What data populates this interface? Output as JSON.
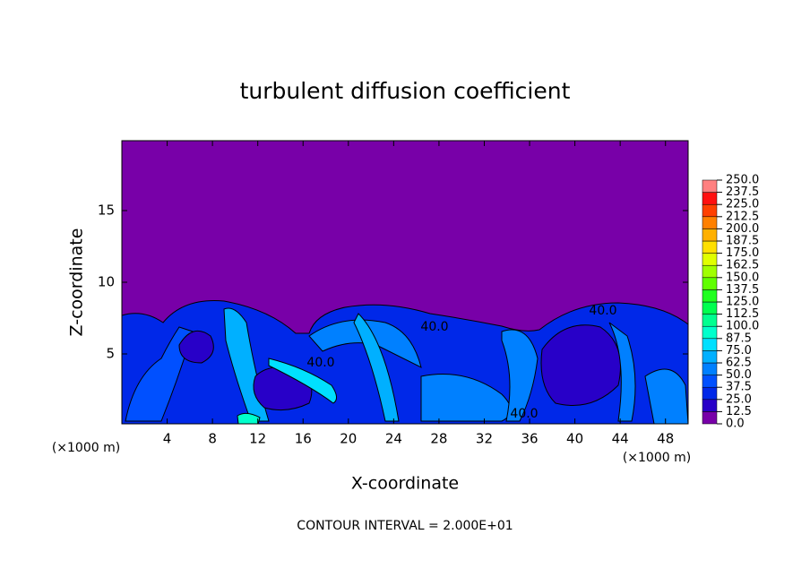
{
  "chart_data": {
    "type": "contour",
    "title": "turbulent diffusion coefficient",
    "xlabel": "X-coordinate",
    "ylabel": "Z-coordinate",
    "x_unit_labels": [
      "(×1000 m)",
      "(×1000 m)"
    ],
    "footnote": "CONTOUR INTERVAL = 2.000E+01",
    "contour_labels": [
      "40.0",
      "40.0",
      "40.0",
      "40.0"
    ],
    "xlim": [
      0,
      50
    ],
    "ylim": [
      0,
      20
    ],
    "xticks": [
      4,
      8,
      12,
      16,
      20,
      24,
      28,
      32,
      36,
      40,
      44,
      48
    ],
    "yticks": [
      5,
      10,
      15
    ],
    "colorbar": {
      "ticks": [
        {
          "value": 0,
          "label": "0.0"
        },
        {
          "value": 12.5,
          "label": "12.5"
        },
        {
          "value": 25,
          "label": "25.0"
        },
        {
          "value": 37.5,
          "label": "37.5"
        },
        {
          "value": 50,
          "label": "50.0"
        },
        {
          "value": 62.5,
          "label": "62.5"
        },
        {
          "value": 75,
          "label": "75.0"
        },
        {
          "value": 87.5,
          "label": "87.5"
        },
        {
          "value": 100,
          "label": "100.0"
        },
        {
          "value": 112.5,
          "label": "112.5"
        },
        {
          "value": 125,
          "label": "125.0"
        },
        {
          "value": 137.5,
          "label": "137.5"
        },
        {
          "value": 150,
          "label": "150.0"
        },
        {
          "value": 162.5,
          "label": "162.5"
        },
        {
          "value": 175,
          "label": "175.0"
        },
        {
          "value": 187.5,
          "label": "187.5"
        },
        {
          "value": 200,
          "label": "200.0"
        },
        {
          "value": 212.5,
          "label": "212.5"
        },
        {
          "value": 225,
          "label": "225.0"
        },
        {
          "value": 237.5,
          "label": "237.5"
        },
        {
          "value": 250,
          "label": "250.0"
        }
      ],
      "colors": [
        "#7800a8",
        "#2800c8",
        "#0028e8",
        "#0050ff",
        "#0080ff",
        "#00b0ff",
        "#00e0ff",
        "#00ffcc",
        "#00ff90",
        "#00ff50",
        "#20ff20",
        "#60ff00",
        "#a0ff00",
        "#e0ff00",
        "#ffe000",
        "#ffb000",
        "#ff8000",
        "#ff4000",
        "#ff1010",
        "#ff8080"
      ]
    },
    "grid": false
  }
}
